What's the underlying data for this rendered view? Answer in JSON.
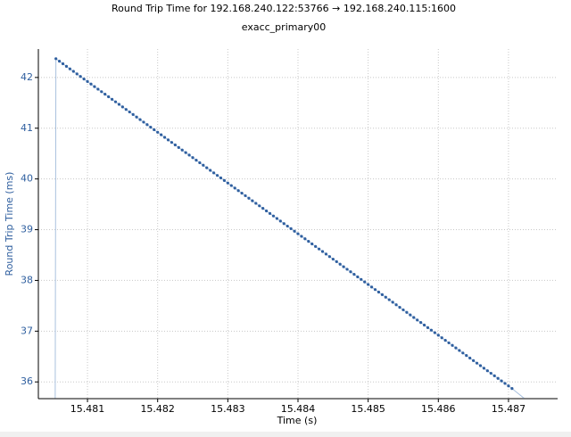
{
  "chart_data": {
    "type": "scatter",
    "title": "Round Trip Time for 192.168.240.122:53766 → 192.168.240.115:1600",
    "subtitle": "exacc_primary00",
    "x_label": "Time (s)",
    "y_label": "Round Trip Time (ms)",
    "xlim": [
      15.4803,
      15.4877
    ],
    "ylim": [
      35.67,
      42.56
    ],
    "xticks": [
      15.481,
      15.482,
      15.483,
      15.484,
      15.485,
      15.486,
      15.487
    ],
    "yticks": [
      36,
      37,
      38,
      39,
      40,
      41,
      42
    ],
    "grid": true,
    "series": [
      {
        "type": "scatter",
        "color": "#2f5f9f",
        "x": [
          15.48055,
          15.4806,
          15.48065,
          15.4807,
          15.48075,
          15.4808,
          15.48085,
          15.4809,
          15.48095,
          15.481,
          15.48105,
          15.4811,
          15.48115,
          15.4812,
          15.48125,
          15.4813,
          15.48135,
          15.4814,
          15.48145,
          15.4815,
          15.48155,
          15.4816,
          15.48165,
          15.4817,
          15.48175,
          15.4818,
          15.48185,
          15.4819,
          15.48195,
          15.482,
          15.48205,
          15.4821,
          15.48215,
          15.4822,
          15.48225,
          15.4823,
          15.48235,
          15.4824,
          15.48245,
          15.4825,
          15.48255,
          15.4826,
          15.48265,
          15.4827,
          15.48275,
          15.4828,
          15.48285,
          15.4829,
          15.48295,
          15.483,
          15.48305,
          15.4831,
          15.48315,
          15.4832,
          15.48325,
          15.4833,
          15.48335,
          15.4834,
          15.48345,
          15.4835,
          15.48355,
          15.4836,
          15.48365,
          15.4837,
          15.48375,
          15.4838,
          15.48385,
          15.4839,
          15.48395,
          15.484,
          15.48405,
          15.4841,
          15.48415,
          15.4842,
          15.48425,
          15.4843,
          15.48435,
          15.4844,
          15.48445,
          15.4845,
          15.48455,
          15.4846,
          15.48465,
          15.4847,
          15.48475,
          15.4848,
          15.48485,
          15.4849,
          15.48495,
          15.485,
          15.48505,
          15.4851,
          15.48515,
          15.4852,
          15.48525,
          15.4853,
          15.48535,
          15.4854,
          15.48545,
          15.4855,
          15.48555,
          15.4856,
          15.48565,
          15.4857,
          15.48575,
          15.4858,
          15.48585,
          15.4859,
          15.48595,
          15.486,
          15.48605,
          15.4861,
          15.48615,
          15.4862,
          15.48625,
          15.4863,
          15.48635,
          15.4864,
          15.48645,
          15.4865,
          15.48655,
          15.4866,
          15.48665,
          15.4867,
          15.48675,
          15.4868,
          15.48685,
          15.4869,
          15.48695,
          15.487,
          15.48705
        ],
        "values": [
          42.37,
          42.32,
          42.27,
          42.22,
          42.17,
          42.12,
          42.07,
          42.02,
          41.97,
          41.92,
          41.87,
          41.82,
          41.77,
          41.72,
          41.67,
          41.62,
          41.57,
          41.52,
          41.47,
          41.42,
          41.37,
          41.32,
          41.27,
          41.22,
          41.17,
          41.12,
          41.07,
          41.02,
          40.97,
          40.92,
          40.87,
          40.82,
          40.77,
          40.72,
          40.67,
          40.62,
          40.57,
          40.52,
          40.47,
          40.42,
          40.37,
          40.32,
          40.27,
          40.22,
          40.17,
          40.12,
          40.07,
          40.02,
          39.97,
          39.92,
          39.87,
          39.82,
          39.77,
          39.72,
          39.67,
          39.62,
          39.57,
          39.52,
          39.47,
          39.42,
          39.37,
          39.32,
          39.27,
          39.22,
          39.17,
          39.12,
          39.07,
          39.02,
          38.97,
          38.92,
          38.87,
          38.82,
          38.77,
          38.72,
          38.67,
          38.62,
          38.57,
          38.52,
          38.47,
          38.42,
          38.37,
          38.32,
          38.27,
          38.22,
          38.17,
          38.12,
          38.07,
          38.02,
          37.97,
          37.92,
          37.87,
          37.82,
          37.77,
          37.72,
          37.67,
          37.62,
          37.57,
          37.52,
          37.47,
          37.42,
          37.37,
          37.32,
          37.27,
          37.22,
          37.17,
          37.12,
          37.07,
          37.02,
          36.97,
          36.92,
          36.87,
          36.82,
          36.77,
          36.72,
          36.67,
          36.62,
          36.57,
          36.52,
          36.47,
          36.42,
          36.37,
          36.32,
          36.27,
          36.22,
          36.17,
          36.12,
          36.07,
          36.02,
          35.97,
          35.92,
          35.87
        ]
      },
      {
        "type": "line",
        "color": "#a9c1de",
        "x": [
          15.48054,
          15.48055,
          15.48705,
          15.48722
        ],
        "values": [
          35.68,
          42.37,
          35.87,
          35.68
        ]
      }
    ]
  }
}
